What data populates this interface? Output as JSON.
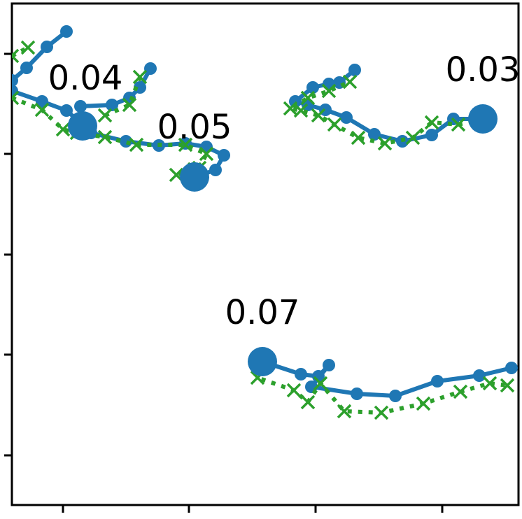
{
  "chart_data": {
    "type": "line",
    "xlim": [
      0,
      724
    ],
    "ylim": [
      0,
      717
    ],
    "xticks": [
      73,
      253,
      434,
      615
    ],
    "yticks": [
      71,
      215,
      358,
      502,
      645
    ],
    "series": [
      {
        "color": "#1f77b4",
        "marker": "circle",
        "linestyle": "solid",
        "x": [
          0,
          21,
          50,
          78
        ],
        "values": [
          607,
          625,
          655,
          677
        ]
      },
      {
        "color": "#1f77b4",
        "marker": "circle",
        "linestyle": "solid",
        "x": [
          0,
          43,
          78,
          101,
          113,
          163,
          210,
          248,
          278,
          303,
          291,
          261
        ],
        "values": [
          592,
          577,
          564,
          544,
          532,
          520,
          514,
          517,
          512,
          500,
          479,
          469
        ]
      },
      {
        "color": "#1f77b4",
        "marker": "circle",
        "linestyle": "solid",
        "x": [
          101,
          98,
          143,
          168,
          183,
          198
        ],
        "values": [
          542,
          570,
          572,
          582,
          597,
          624
        ]
      },
      {
        "color": "#1f77b4",
        "marker": "circle",
        "linestyle": "solid",
        "x": [
          673,
          631,
          600,
          558,
          518,
          478,
          448,
          423,
          405,
          430,
          453,
          468,
          490
        ],
        "values": [
          552,
          552,
          529,
          520,
          530,
          554,
          565,
          572,
          577,
          597,
          602,
          604,
          622
        ]
      },
      {
        "color": "#1f77b4",
        "marker": "circle",
        "linestyle": "solid",
        "x": [
          358,
          413,
          438,
          453,
          428,
          493,
          548,
          608,
          668,
          714
        ],
        "values": [
          205,
          187,
          184,
          200,
          169,
          159,
          156,
          177,
          185,
          196
        ]
      },
      {
        "color": "#2ca02c",
        "marker": "x",
        "linestyle": "dotted",
        "x": [
          0,
          23
        ],
        "values": [
          642,
          654
        ]
      },
      {
        "color": "#2ca02c",
        "marker": "x",
        "linestyle": "dotted",
        "x": [
          0,
          43,
          73,
          93,
          133,
          178,
          248,
          278,
          268,
          235,
          261
        ],
        "values": [
          582,
          565,
          537,
          532,
          526,
          515,
          515,
          502,
          482,
          472,
          480
        ]
      },
      {
        "color": "#2ca02c",
        "marker": "x",
        "linestyle": "dotted",
        "x": [
          133,
          168,
          183
        ],
        "values": [
          557,
          572,
          612
        ]
      },
      {
        "color": "#2ca02c",
        "marker": "x",
        "linestyle": "dotted",
        "x": [
          673,
          638,
          600,
          573,
          533,
          495,
          461,
          438,
          413,
          398,
          423,
          453,
          483
        ],
        "values": [
          552,
          544,
          547,
          525,
          517,
          525,
          544,
          557,
          564,
          567,
          582,
          592,
          605
        ]
      },
      {
        "color": "#2ca02c",
        "marker": "x",
        "linestyle": "dotted",
        "x": [
          358,
          351,
          403,
          423,
          441,
          475,
          528,
          588,
          641,
          683,
          708
        ],
        "values": [
          205,
          182,
          164,
          147,
          174,
          134,
          132,
          145,
          162,
          174,
          171
        ]
      }
    ],
    "highlights": {
      "color": "#1f77b4",
      "x": [
        101,
        261,
        673,
        358
      ],
      "values": [
        542,
        469,
        552,
        205
      ]
    },
    "annotations": [
      {
        "text": "0.04",
        "x": 105,
        "y": 607
      },
      {
        "text": "0.05",
        "x": 261,
        "y": 537
      },
      {
        "text": "0.03",
        "x": 673,
        "y": 619
      },
      {
        "text": "0.07",
        "x": 358,
        "y": 272
      }
    ]
  }
}
